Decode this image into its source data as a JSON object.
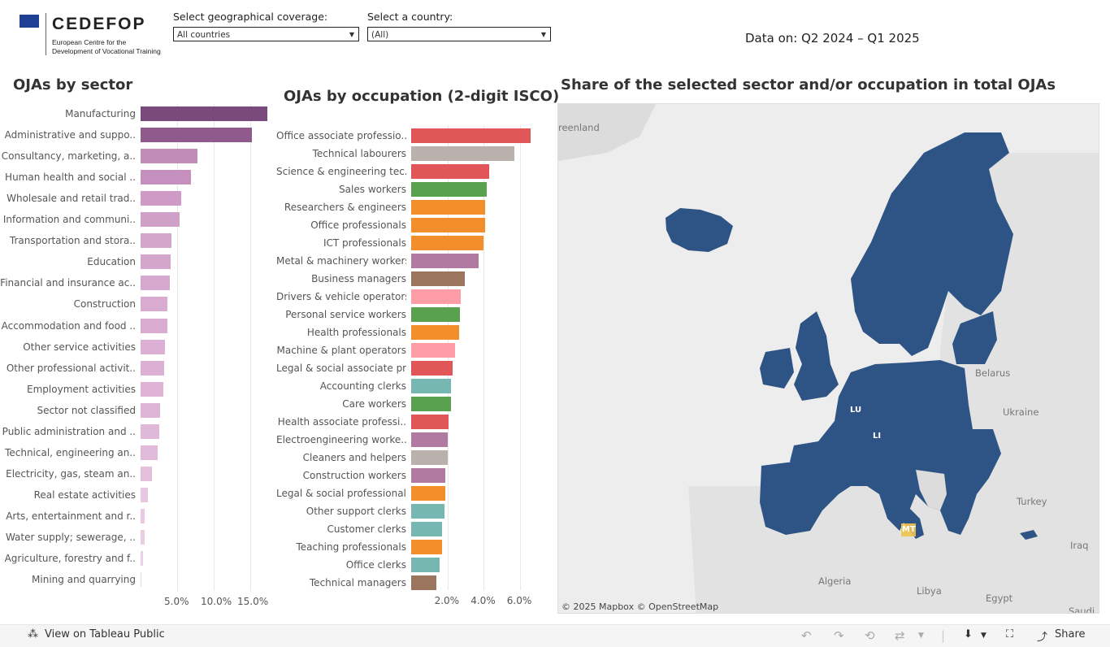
{
  "header": {
    "brand_name": "CEDEFOP",
    "brand_sub": "European Centre for the Development of Vocational Training",
    "geo_label": "Select geographical coverage:",
    "geo_value": "All countries",
    "country_label": "Select a country:",
    "country_value": "(All)",
    "data_on": "Data on: Q2 2024 – Q1 2025"
  },
  "sector": {
    "title": "OJAs by sector",
    "axis_ticks": [
      "5.0%",
      "10.0%",
      "15.0%"
    ],
    "items": [
      {
        "label": "Manufacturing",
        "value": 17.3,
        "color": "#7b4a7c"
      },
      {
        "label": "Administrative and suppo..",
        "value": 15.2,
        "color": "#8f5a8c"
      },
      {
        "label": "Consultancy, marketing, a..",
        "value": 7.8,
        "color": "#c08cb8"
      },
      {
        "label": "Human health and social ..",
        "value": 6.9,
        "color": "#c690be"
      },
      {
        "label": "Wholesale and retail trad..",
        "value": 5.6,
        "color": "#cf9bc6"
      },
      {
        "label": "Information and communi..",
        "value": 5.3,
        "color": "#d0a0c8"
      },
      {
        "label": "Transportation and stora..",
        "value": 4.2,
        "color": "#d5a6cd"
      },
      {
        "label": "Education",
        "value": 4.1,
        "color": "#d5a6cd"
      },
      {
        "label": "Financial and insurance ac..",
        "value": 4.0,
        "color": "#d7a8cf"
      },
      {
        "label": "Construction",
        "value": 3.7,
        "color": "#d9abd1"
      },
      {
        "label": "Accommodation and food ..",
        "value": 3.7,
        "color": "#d9abd1"
      },
      {
        "label": "Other service activities",
        "value": 3.3,
        "color": "#dcb0d4"
      },
      {
        "label": "Other professional activit..",
        "value": 3.2,
        "color": "#dcb0d4"
      },
      {
        "label": "Employment activities",
        "value": 3.1,
        "color": "#ddb2d5"
      },
      {
        "label": "Sector not classified",
        "value": 2.7,
        "color": "#dfb5d7"
      },
      {
        "label": "Public administration and ..",
        "value": 2.5,
        "color": "#e0b8d8"
      },
      {
        "label": "Technical, engineering an..",
        "value": 2.3,
        "color": "#e1bada"
      },
      {
        "label": "Electricity, gas, steam an..",
        "value": 1.6,
        "color": "#e4c0dd"
      },
      {
        "label": "Real estate activities",
        "value": 1.0,
        "color": "#e7c6e0"
      },
      {
        "label": "Arts, entertainment and r..",
        "value": 0.6,
        "color": "#e9cae2"
      },
      {
        "label": "Water supply; sewerage, ..",
        "value": 0.5,
        "color": "#eacde3"
      },
      {
        "label": "Agriculture, forestry and f..",
        "value": 0.3,
        "color": "#ecd0e5"
      },
      {
        "label": "Mining and quarrying",
        "value": 0.1,
        "color": "#eed4e7"
      }
    ]
  },
  "occupation": {
    "title": "OJAs by occupation (2-digit ISCO)",
    "axis_ticks": [
      "2.0%",
      "4.0%",
      "6.0%"
    ],
    "items": [
      {
        "label": "Office associate professio..",
        "value": 6.6,
        "color": "#e15759"
      },
      {
        "label": "Technical labourers",
        "value": 5.7,
        "color": "#bab0ac"
      },
      {
        "label": "Science & engineering tec..",
        "value": 4.3,
        "color": "#e15759"
      },
      {
        "label": "Sales workers",
        "value": 4.15,
        "color": "#59a14f"
      },
      {
        "label": "Researchers & engineers",
        "value": 4.1,
        "color": "#f28e2b"
      },
      {
        "label": "Office professionals",
        "value": 4.1,
        "color": "#f28e2b"
      },
      {
        "label": "ICT professionals",
        "value": 4.0,
        "color": "#f28e2b"
      },
      {
        "label": "Metal & machinery workers",
        "value": 3.7,
        "color": "#b07aa1"
      },
      {
        "label": "Business managers",
        "value": 2.95,
        "color": "#9c755f"
      },
      {
        "label": "Drivers & vehicle operators",
        "value": 2.75,
        "color": "#ff9da7"
      },
      {
        "label": "Personal service workers",
        "value": 2.7,
        "color": "#59a14f"
      },
      {
        "label": "Health professionals",
        "value": 2.65,
        "color": "#f28e2b"
      },
      {
        "label": "Machine & plant operators",
        "value": 2.4,
        "color": "#ff9da7"
      },
      {
        "label": "Legal & social associate pr..",
        "value": 2.3,
        "color": "#e15759"
      },
      {
        "label": "Accounting clerks",
        "value": 2.2,
        "color": "#76b7b2"
      },
      {
        "label": "Care workers",
        "value": 2.2,
        "color": "#59a14f"
      },
      {
        "label": "Health associate professi..",
        "value": 2.05,
        "color": "#e15759"
      },
      {
        "label": "Electroengineering worke..",
        "value": 2.0,
        "color": "#b07aa1"
      },
      {
        "label": "Cleaners and helpers",
        "value": 2.0,
        "color": "#bab0ac"
      },
      {
        "label": "Construction workers",
        "value": 1.9,
        "color": "#b07aa1"
      },
      {
        "label": "Legal & social professionals",
        "value": 1.9,
        "color": "#f28e2b"
      },
      {
        "label": "Other support clerks",
        "value": 1.85,
        "color": "#76b7b2"
      },
      {
        "label": "Customer clerks",
        "value": 1.7,
        "color": "#76b7b2"
      },
      {
        "label": "Teaching professionals",
        "value": 1.7,
        "color": "#f28e2b"
      },
      {
        "label": "Office clerks",
        "value": 1.55,
        "color": "#76b7b2"
      },
      {
        "label": "Technical managers",
        "value": 1.4,
        "color": "#9c755f"
      }
    ]
  },
  "map": {
    "title": "Share of the selected sector and/or occupation in total OJAs",
    "fill_color": "#2d5484",
    "place_labels": [
      "reenland",
      "Belarus",
      "Ukraine",
      "Turkey",
      "Iraq",
      "Algeria",
      "Libya",
      "Egypt",
      "Saudi A"
    ],
    "country_codes": [
      "LU",
      "LI",
      "MT"
    ],
    "attribution": "© 2025 Mapbox  © OpenStreetMap"
  },
  "footer": {
    "view_label": "View on Tableau Public",
    "share_label": "Share"
  }
}
